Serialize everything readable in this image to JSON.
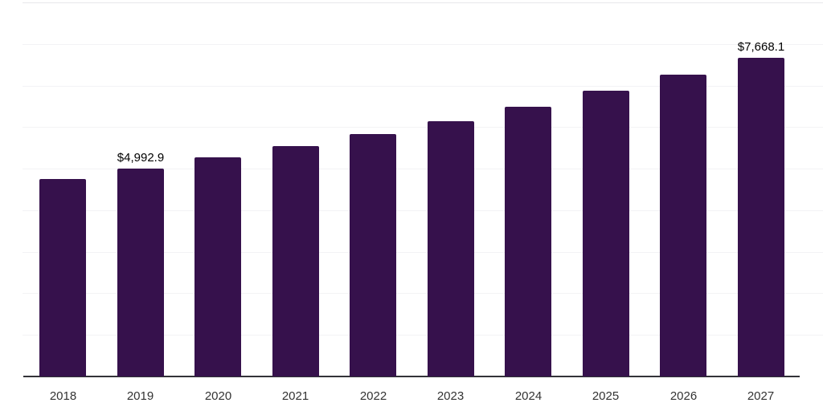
{
  "chart_data": {
    "type": "bar",
    "title": "",
    "xlabel": "",
    "ylabel": "",
    "categories": [
      "2018",
      "2019",
      "2020",
      "2021",
      "2022",
      "2023",
      "2024",
      "2025",
      "2026",
      "2027"
    ],
    "values": [
      4743,
      4992.9,
      5263,
      5534,
      5841,
      6150,
      6497,
      6882,
      7268,
      7668.1
    ],
    "data_labels": [
      "",
      "$4,992.9",
      "",
      "",
      "",
      "",
      "",
      "",
      "",
      "$7,668.1"
    ],
    "ylim": [
      0,
      9000
    ],
    "grid_step": 1000,
    "grid": "horizontal",
    "legend": "none",
    "colors": {
      "bar": "#36114C",
      "grid_line": "#f3f3f5",
      "top_grid_line": "#e7e7ea",
      "axis_line": "#333338",
      "tick_label": "#333333",
      "data_label": "#000000",
      "background": "#ffffff"
    }
  }
}
